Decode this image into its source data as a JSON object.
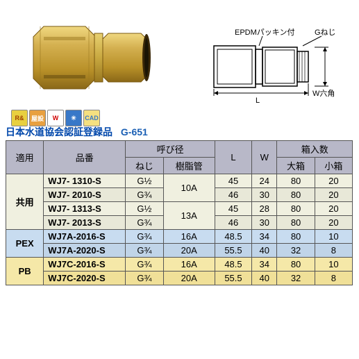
{
  "schematic": {
    "label_epdm": "EPDMパッキン付",
    "label_g": "Gねじ",
    "label_L": "L",
    "label_W": "W六角"
  },
  "icons": [
    {
      "text": "R&",
      "bg": "#e8d040",
      "fg": "#a04000"
    },
    {
      "text": "屋設",
      "bg": "#e8a040",
      "fg": "#fff"
    },
    {
      "text": "W",
      "bg": "#fff",
      "fg": "#d00000"
    },
    {
      "text": "✳",
      "bg": "#3878c8",
      "fg": "#fff"
    },
    {
      "text": "CAD",
      "bg": "#f5e080",
      "fg": "#3878c8"
    }
  ],
  "registration": {
    "text": "日本水道協会認証登録品",
    "code": "G-651"
  },
  "table": {
    "headers": {
      "application": "適用",
      "part_no": "品番",
      "diameter": "呼び径",
      "thread": "ねじ",
      "pipe": "樹脂管",
      "L": "L",
      "W": "W",
      "box": "箱入数",
      "box_large": "大箱",
      "box_small": "小箱"
    },
    "groups": [
      {
        "app": "共用",
        "row_class_base": "row-odd",
        "rows": [
          {
            "pn": "WJ7-  1310-S",
            "thread": "G½",
            "pipe": "10A",
            "pipe_span": 2,
            "L": "45",
            "W": "24",
            "bl": "80",
            "bs": "20",
            "cls": "row-odd"
          },
          {
            "pn": "WJ7-  2010-S",
            "thread": "G¾",
            "L": "46",
            "W": "30",
            "bl": "80",
            "bs": "20",
            "cls": "row-even"
          },
          {
            "pn": "WJ7-  1313-S",
            "thread": "G½",
            "pipe": "13A",
            "pipe_span": 2,
            "L": "45",
            "W": "28",
            "bl": "80",
            "bs": "20",
            "cls": "row-odd"
          },
          {
            "pn": "WJ7-  2013-S",
            "thread": "G¾",
            "L": "46",
            "W": "30",
            "bl": "80",
            "bs": "20",
            "cls": "row-even"
          }
        ]
      },
      {
        "app": "PEX",
        "rows": [
          {
            "pn": "WJ7A-2016-S",
            "thread": "G¾",
            "pipe": "16A",
            "L": "48.5",
            "W": "34",
            "bl": "80",
            "bs": "10",
            "cls": "row-pex"
          },
          {
            "pn": "WJ7A-2020-S",
            "thread": "G¾",
            "pipe": "20A",
            "L": "55.5",
            "W": "40",
            "bl": "32",
            "bs": "8",
            "cls": "row-pex2"
          }
        ]
      },
      {
        "app": "PB",
        "rows": [
          {
            "pn": "WJ7C-2016-S",
            "thread": "G¾",
            "pipe": "16A",
            "L": "48.5",
            "W": "34",
            "bl": "80",
            "bs": "10",
            "cls": "row-pb"
          },
          {
            "pn": "WJ7C-2020-S",
            "thread": "G¾",
            "pipe": "20A",
            "L": "55.5",
            "W": "40",
            "bl": "32",
            "bs": "8",
            "cls": "row-pb2"
          }
        ]
      }
    ]
  },
  "colors": {
    "brass_light": "#d4b050",
    "brass_mid": "#c09830",
    "brass_dark": "#a07820",
    "header_bg": "#b8b8c8",
    "border": "#555"
  }
}
